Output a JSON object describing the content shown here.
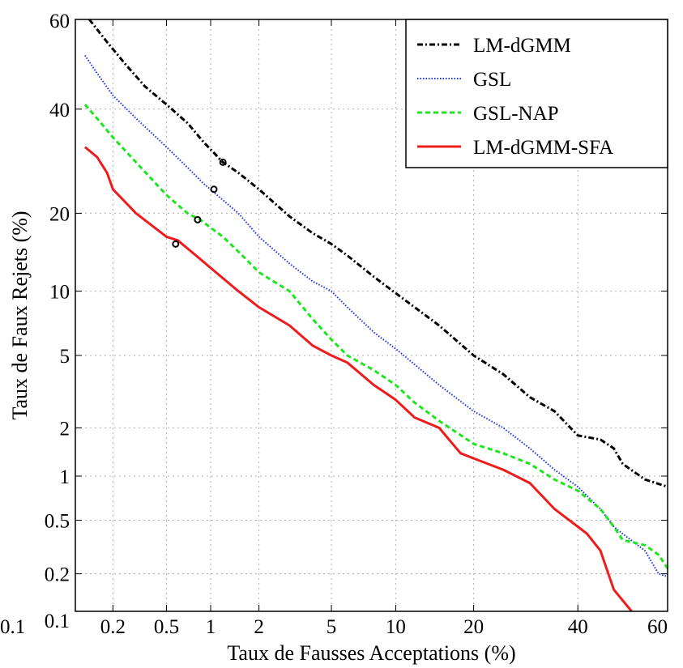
{
  "chart_data": {
    "type": "line",
    "title": "",
    "xlabel": "Taux de Fausses Acceptations (%)",
    "ylabel": "Taux de Faux Rejets (%)",
    "scale": "normal-deviate (DET)",
    "xlim": [
      0.1,
      60
    ],
    "ylim": [
      0.1,
      60
    ],
    "xticks": [
      0.1,
      0.2,
      0.5,
      1,
      2,
      5,
      10,
      20,
      40,
      60
    ],
    "xtick_labels": [
      "0.1",
      "0.2",
      "0.5",
      "1",
      "2",
      "5",
      "10",
      "20",
      "40",
      "60"
    ],
    "yticks": [
      0.1,
      0.2,
      0.5,
      1,
      2,
      5,
      10,
      20,
      40,
      60
    ],
    "ytick_labels": [
      "0.1",
      "0.2",
      "0.5",
      "1",
      "2",
      "5",
      "10",
      "20",
      "40",
      "60"
    ],
    "grid": true,
    "legend_position": "top-right",
    "series": [
      {
        "name": "LM-dGMM",
        "color": "#000000",
        "style": "dashdot",
        "points": [
          [
            0.13,
            60
          ],
          [
            0.18,
            55
          ],
          [
            0.25,
            50
          ],
          [
            0.35,
            45
          ],
          [
            0.5,
            41
          ],
          [
            0.7,
            37
          ],
          [
            0.9,
            33
          ],
          [
            1.2,
            29
          ],
          [
            1.5,
            27
          ],
          [
            2,
            24
          ],
          [
            3,
            19.5
          ],
          [
            4,
            17
          ],
          [
            5,
            15.5
          ],
          [
            6,
            14
          ],
          [
            8,
            11.5
          ],
          [
            10,
            9.8
          ],
          [
            12,
            8.5
          ],
          [
            15,
            7
          ],
          [
            20,
            5
          ],
          [
            25,
            4
          ],
          [
            30,
            3
          ],
          [
            35,
            2.5
          ],
          [
            40,
            1.8
          ],
          [
            45,
            1.7
          ],
          [
            48,
            1.5
          ],
          [
            50,
            1.2
          ],
          [
            55,
            0.95
          ],
          [
            60,
            0.85
          ]
        ],
        "marker": [
          1.2,
          29
        ]
      },
      {
        "name": "GSL",
        "color": "#1a33e6",
        "style": "dotted",
        "points": [
          [
            0.12,
            52
          ],
          [
            0.15,
            48
          ],
          [
            0.2,
            43
          ],
          [
            0.3,
            38
          ],
          [
            0.5,
            32
          ],
          [
            0.7,
            28
          ],
          [
            0.9,
            25
          ],
          [
            1.1,
            23
          ],
          [
            1.5,
            20
          ],
          [
            2,
            16.5
          ],
          [
            3,
            13
          ],
          [
            4,
            11
          ],
          [
            5,
            10
          ],
          [
            6,
            8.5
          ],
          [
            8,
            6.5
          ],
          [
            10,
            5.4
          ],
          [
            12,
            4.5
          ],
          [
            15,
            3.5
          ],
          [
            20,
            2.5
          ],
          [
            25,
            2
          ],
          [
            30,
            1.5
          ],
          [
            35,
            1.1
          ],
          [
            40,
            0.85
          ],
          [
            45,
            0.6
          ],
          [
            48,
            0.45
          ],
          [
            50,
            0.4
          ],
          [
            55,
            0.3
          ],
          [
            58,
            0.2
          ],
          [
            60,
            0.19
          ]
        ],
        "marker": [
          1.05,
          24
        ]
      },
      {
        "name": "GSL-NAP",
        "color": "#1ee61e",
        "style": "dashed",
        "points": [
          [
            0.12,
            41
          ],
          [
            0.15,
            38
          ],
          [
            0.2,
            34
          ],
          [
            0.3,
            29
          ],
          [
            0.5,
            23
          ],
          [
            0.7,
            20
          ],
          [
            0.85,
            19
          ],
          [
            1.2,
            16.5
          ],
          [
            1.5,
            14.5
          ],
          [
            2,
            12
          ],
          [
            3,
            10
          ],
          [
            4,
            7.5
          ],
          [
            5,
            6
          ],
          [
            6,
            5
          ],
          [
            8,
            4.2
          ],
          [
            10,
            3.5
          ],
          [
            12,
            2.8
          ],
          [
            15,
            2.2
          ],
          [
            20,
            1.6
          ],
          [
            25,
            1.4
          ],
          [
            30,
            1.2
          ],
          [
            35,
            0.95
          ],
          [
            40,
            0.8
          ],
          [
            45,
            0.6
          ],
          [
            48,
            0.45
          ],
          [
            50,
            0.36
          ],
          [
            55,
            0.33
          ],
          [
            58,
            0.28
          ],
          [
            60,
            0.22
          ]
        ],
        "marker": [
          0.82,
          19
        ]
      },
      {
        "name": "LM-dGMM-SFA",
        "color": "#ee1c1c",
        "style": "solid",
        "points": [
          [
            0.12,
            32
          ],
          [
            0.15,
            30
          ],
          [
            0.18,
            27
          ],
          [
            0.2,
            24
          ],
          [
            0.3,
            20
          ],
          [
            0.5,
            16.5
          ],
          [
            0.6,
            16
          ],
          [
            0.8,
            14
          ],
          [
            1,
            12.5
          ],
          [
            1.5,
            10
          ],
          [
            2,
            8.5
          ],
          [
            3,
            7
          ],
          [
            4,
            5.6
          ],
          [
            5,
            5
          ],
          [
            6,
            4.6
          ],
          [
            8,
            3.5
          ],
          [
            10,
            2.9
          ],
          [
            12,
            2.3
          ],
          [
            15,
            2
          ],
          [
            18,
            1.4
          ],
          [
            20,
            1.3
          ],
          [
            25,
            1.1
          ],
          [
            30,
            0.9
          ],
          [
            35,
            0.6
          ],
          [
            40,
            0.45
          ],
          [
            42,
            0.4
          ],
          [
            45,
            0.3
          ],
          [
            48,
            0.15
          ],
          [
            52,
            0.1
          ]
        ],
        "marker": [
          0.58,
          15.5
        ]
      }
    ]
  }
}
